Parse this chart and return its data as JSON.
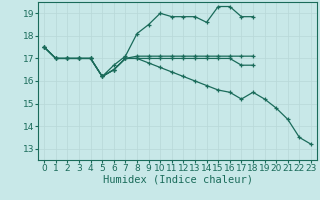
{
  "xlabel": "Humidex (Indice chaleur)",
  "bg_color": "#c8e8e8",
  "line_color": "#1a6b5a",
  "grid_color": "#b8d8d8",
  "xlim": [
    -0.5,
    23.5
  ],
  "ylim": [
    12.5,
    19.5
  ],
  "xticks": [
    0,
    1,
    2,
    3,
    4,
    5,
    6,
    7,
    8,
    9,
    10,
    11,
    12,
    13,
    14,
    15,
    16,
    17,
    18,
    19,
    20,
    21,
    22,
    23
  ],
  "yticks": [
    13,
    14,
    15,
    16,
    17,
    18,
    19
  ],
  "tick_fontsize": 6.5,
  "xlabel_fontsize": 7.5,
  "lines": [
    {
      "x": [
        0,
        1,
        2,
        3,
        4,
        5,
        6,
        7,
        8,
        9,
        10,
        11,
        12,
        13,
        14,
        15,
        16,
        17,
        18
      ],
      "y": [
        17.5,
        17.0,
        17.0,
        17.0,
        17.0,
        16.2,
        16.7,
        17.1,
        18.1,
        18.5,
        19.0,
        18.85,
        18.85,
        18.85,
        18.6,
        19.3,
        19.3,
        18.85,
        18.85
      ]
    },
    {
      "x": [
        0,
        1,
        2,
        3,
        4,
        5,
        6,
        7,
        8,
        9,
        10,
        11,
        12,
        13,
        14,
        15,
        16,
        17,
        18
      ],
      "y": [
        17.5,
        17.0,
        17.0,
        17.0,
        17.0,
        16.2,
        16.5,
        17.0,
        17.0,
        17.0,
        17.0,
        17.0,
        17.0,
        17.0,
        17.0,
        17.0,
        17.0,
        16.7,
        16.7
      ]
    },
    {
      "x": [
        0,
        1,
        2,
        3,
        4,
        5,
        6,
        7,
        8,
        9,
        10,
        11,
        12,
        13,
        14,
        15,
        16,
        17,
        18
      ],
      "y": [
        17.5,
        17.0,
        17.0,
        17.0,
        17.0,
        16.2,
        16.5,
        17.0,
        17.1,
        17.1,
        17.1,
        17.1,
        17.1,
        17.1,
        17.1,
        17.1,
        17.1,
        17.1,
        17.1
      ]
    },
    {
      "x": [
        0,
        1,
        2,
        3,
        4,
        5,
        6,
        7,
        8,
        9,
        10,
        11,
        12,
        13,
        14,
        15,
        16,
        17,
        18,
        19,
        20,
        21,
        22,
        23
      ],
      "y": [
        17.5,
        17.0,
        17.0,
        17.0,
        17.0,
        16.2,
        16.5,
        17.0,
        17.0,
        16.8,
        16.6,
        16.4,
        16.2,
        16.0,
        15.8,
        15.6,
        15.5,
        15.2,
        15.5,
        15.2,
        14.8,
        14.3,
        13.5,
        13.2
      ]
    }
  ]
}
